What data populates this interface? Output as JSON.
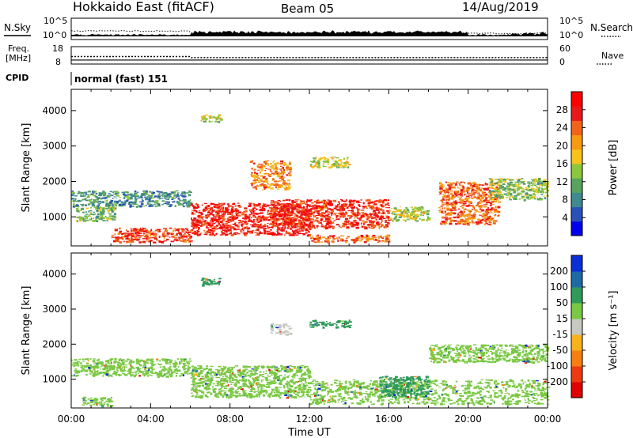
{
  "header": {
    "radar": "Hokkaido East (fitACF)",
    "beam": "Beam 05",
    "date": "14/Aug/2019"
  },
  "aux": {
    "nsky_label": "N.Sky",
    "nsearch_label": "N.Search",
    "noise_ticks_left": [
      "10^5",
      "10^0"
    ],
    "noise_ticks_right": [
      "10^5",
      "10^0"
    ],
    "freq_label_1": "Freq.",
    "freq_label_2": "[MHz]",
    "freq_ticks": [
      "18",
      "8"
    ],
    "nave_label": "Nave",
    "nave_ticks": [
      "60",
      "0"
    ],
    "cpid_label": "CPID",
    "cpid_value": "normal (fast) 151"
  },
  "colors": {
    "power": [
      "#0000ee",
      "#2a50b8",
      "#3f8a8f",
      "#58a45e",
      "#8cc63c",
      "#f7c21c",
      "#f79a12",
      "#f2631a",
      "#e8191a",
      "#ff0000"
    ],
    "velocity": [
      "#0a2fd6",
      "#1f6aa5",
      "#2f9a5a",
      "#7ac943",
      "#c8c8c0",
      "#f7b21c",
      "#f77f12",
      "#ee3a10",
      "#e00000"
    ]
  },
  "chart_data": [
    {
      "type": "heatmap",
      "panel": "power",
      "ylabel": "Slant Range [km]",
      "xlabel": "",
      "ylim": [
        180,
        4600
      ],
      "xlim": [
        0,
        24
      ],
      "yticks": [
        1000,
        2000,
        3000,
        4000
      ],
      "colorbar": {
        "label": "Power [dB]",
        "range": [
          0,
          32
        ],
        "ticks": [
          4,
          8,
          12,
          16,
          20,
          24,
          28
        ]
      },
      "regions": [
        {
          "t": [
            0.0,
            6.0
          ],
          "r": [
            1300,
            1750
          ],
          "value": 9
        },
        {
          "t": [
            0.2,
            2.2
          ],
          "r": [
            900,
            1300
          ],
          "value": 12
        },
        {
          "t": [
            2.0,
            6.0
          ],
          "r": [
            300,
            700
          ],
          "value": 26
        },
        {
          "t": [
            6.0,
            12.0
          ],
          "r": [
            500,
            1400
          ],
          "value": 28
        },
        {
          "t": [
            10.0,
            16.0
          ],
          "r": [
            700,
            1500
          ],
          "value": 27
        },
        {
          "t": [
            12.0,
            16.0
          ],
          "r": [
            300,
            500
          ],
          "value": 24
        },
        {
          "t": [
            9.0,
            11.0
          ],
          "r": [
            1800,
            2600
          ],
          "value": 22
        },
        {
          "t": [
            16.0,
            18.0
          ],
          "r": [
            900,
            1300
          ],
          "value": 15
        },
        {
          "t": [
            18.5,
            21.5
          ],
          "r": [
            800,
            2000
          ],
          "value": 24
        },
        {
          "t": [
            21.0,
            24.0
          ],
          "r": [
            1500,
            2100
          ],
          "value": 14
        },
        {
          "t": [
            6.5,
            7.5
          ],
          "r": [
            3700,
            3900
          ],
          "value": 16
        },
        {
          "t": [
            12.0,
            14.0
          ],
          "r": [
            2400,
            2700
          ],
          "value": 16
        }
      ]
    },
    {
      "type": "heatmap",
      "panel": "velocity",
      "ylabel": "Slant Range [km]",
      "xlabel": "Time UT",
      "ylim": [
        180,
        4600
      ],
      "xlim": [
        0,
        24
      ],
      "yticks": [
        1000,
        2000,
        3000,
        4000
      ],
      "xticks": [
        "00:00",
        "04:00",
        "08:00",
        "12:00",
        "16:00",
        "20:00",
        "00:00"
      ],
      "colorbar": {
        "label": "Velocity [m s⁻¹]",
        "ticks": [
          200,
          100,
          50,
          15,
          -15,
          -50,
          -100,
          -200
        ]
      },
      "regions": [
        {
          "t": [
            0.0,
            6.0
          ],
          "r": [
            1100,
            1600
          ],
          "value": 0
        },
        {
          "t": [
            0.5,
            2.0
          ],
          "r": [
            250,
            500
          ],
          "value": 0
        },
        {
          "t": [
            6.0,
            12.0
          ],
          "r": [
            500,
            1400
          ],
          "value": 0
        },
        {
          "t": [
            12.0,
            24.0
          ],
          "r": [
            300,
            1000
          ],
          "value": 0
        },
        {
          "t": [
            15.5,
            18.0
          ],
          "r": [
            500,
            1100
          ],
          "value": 45
        },
        {
          "t": [
            10.0,
            11.0
          ],
          "r": [
            2300,
            2600
          ],
          "value": -40
        },
        {
          "t": [
            12.0,
            14.0
          ],
          "r": [
            2500,
            2700
          ],
          "value": 30
        },
        {
          "t": [
            6.5,
            7.5
          ],
          "r": [
            3700,
            3900
          ],
          "value": 40
        },
        {
          "t": [
            18.0,
            24.0
          ],
          "r": [
            1500,
            2000
          ],
          "value": 0
        }
      ]
    },
    {
      "type": "line",
      "panel": "noise",
      "series": [
        {
          "name": "N.Sky",
          "style": "solid"
        },
        {
          "name": "N.Search",
          "style": "dotted"
        }
      ]
    },
    {
      "type": "line",
      "panel": "frequency",
      "series": [
        {
          "name": "Freq.",
          "style": "solid",
          "value_mhz": 10.3
        },
        {
          "name": "Nave",
          "style": "dotted",
          "values": [
            [
              0,
              26
            ],
            [
              6,
              26
            ],
            [
              6.05,
              22
            ],
            [
              24,
              22
            ]
          ]
        }
      ]
    }
  ]
}
